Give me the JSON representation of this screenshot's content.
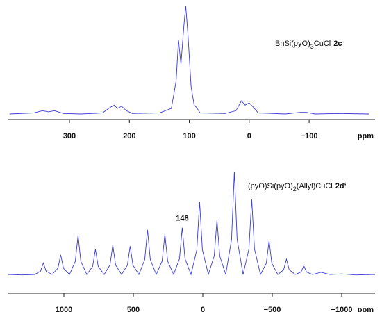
{
  "chart_data": [
    {
      "type": "line",
      "annotation": [
        "BnSi(pyO)",
        "3",
        "CuCl",
        "2c"
      ],
      "xlabel": "ppm",
      "xlim": [
        402,
        -210
      ],
      "ylim": [
        -5,
        100
      ],
      "xticks": [
        300,
        200,
        100,
        0,
        {
          "value": -100,
          "label": "−100"
        }
      ],
      "color": "#3b3bd6",
      "x": [
        400,
        360,
        345,
        335,
        325,
        310,
        280,
        245,
        232,
        225,
        220,
        213,
        205,
        195,
        150,
        130,
        122,
        118,
        114,
        109,
        106,
        102,
        97,
        92,
        88,
        82,
        40,
        22,
        13,
        7,
        0,
        -7,
        -15,
        -60,
        -85,
        -95,
        -110,
        -150,
        -200
      ],
      "values": [
        0,
        1,
        3,
        2,
        3,
        0.5,
        0,
        1,
        6,
        8,
        5,
        7,
        3,
        0.5,
        1,
        5,
        30,
        67,
        45,
        80,
        98,
        70,
        25,
        8,
        6,
        1,
        0.5,
        3,
        12,
        8,
        10,
        6,
        1,
        0,
        1.5,
        1.5,
        0,
        0.5,
        0
      ]
    },
    {
      "type": "line",
      "annotation": [
        "(pyO)Si(pyO)",
        "2",
        "(Allyl)CuCl",
        "2d‘"
      ],
      "peak_label": 148,
      "xlabel": "ppm",
      "xlim": [
        1400,
        -1240
      ],
      "ylim": [
        -15,
        100
      ],
      "xticks": [
        1000,
        500,
        0,
        {
          "value": -500,
          "label": "−500"
        },
        {
          "value": -1000,
          "label": "−1000"
        }
      ],
      "color": "#3b3bd6",
      "x": [
        1400,
        1300,
        1210,
        1168,
        1148,
        1128,
        1085,
        1043,
        1023,
        1003,
        960,
        918,
        898,
        878,
        835,
        793,
        773,
        753,
        710,
        668,
        648,
        628,
        585,
        543,
        523,
        503,
        460,
        418,
        398,
        378,
        335,
        293,
        273,
        253,
        210,
        168,
        148,
        128,
        85,
        43,
        23,
        3,
        -40,
        -82,
        -102,
        -122,
        -165,
        -207,
        -227,
        -247,
        -290,
        -332,
        -352,
        -372,
        -415,
        -457,
        -477,
        -497,
        -540,
        -582,
        -602,
        -622,
        -665,
        -707,
        -727,
        -747,
        -790,
        -852,
        -915,
        -1000,
        -1100,
        -1240
      ],
      "values": [
        1,
        0.5,
        1,
        4,
        11.5,
        4,
        1,
        6.7,
        19,
        6.7,
        1,
        13,
        37,
        13,
        1,
        8.4,
        24,
        8.4,
        1,
        9.8,
        28,
        9.8,
        1,
        9.5,
        27,
        9.5,
        1,
        14.7,
        42,
        14.7,
        1,
        13.3,
        38,
        13.3,
        1,
        15.4,
        44,
        15.4,
        1,
        23.8,
        68,
        23.8,
        1,
        17.9,
        51,
        17.9,
        1,
        33.3,
        95,
        33.3,
        1,
        24.5,
        70,
        24.5,
        1,
        11.2,
        32,
        11.2,
        1,
        5.3,
        15,
        5.3,
        1,
        3.2,
        9,
        3.2,
        1,
        3,
        1,
        1.5,
        0.5,
        1
      ]
    }
  ]
}
